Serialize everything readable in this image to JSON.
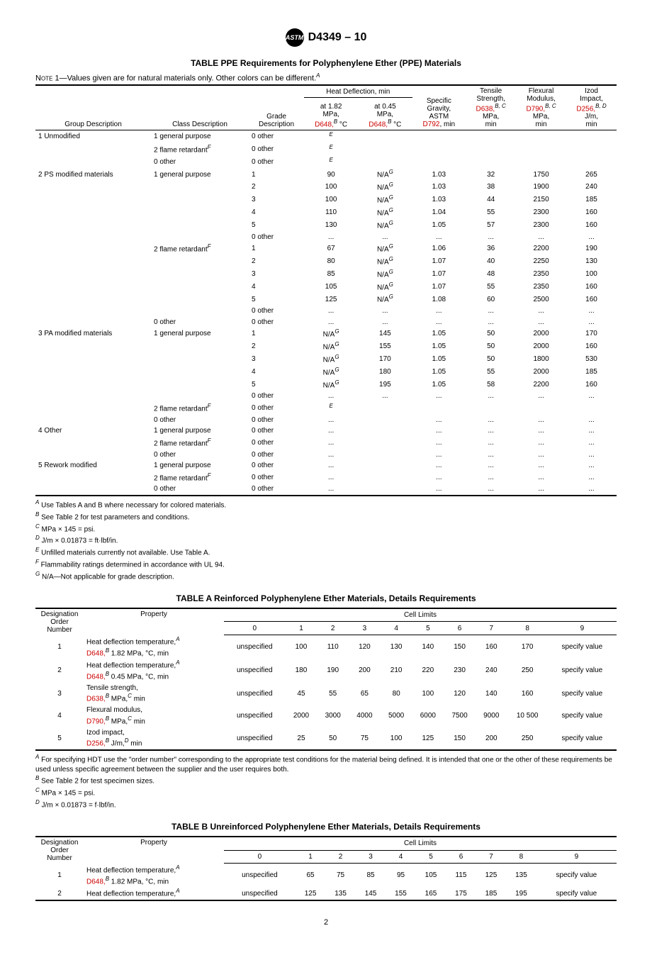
{
  "header": {
    "logo_text": "ASTM",
    "doc_id": "D4349 – 10"
  },
  "table_ppe": {
    "title": "TABLE PPE  Requirements for Polyphenylene Ether (PPE) Materials",
    "note_label": "Note 1",
    "note_text": "—Values given are for natural materials only. Other colors can be different.",
    "note_sup": "A",
    "headers": {
      "group": "Group Description",
      "class": "Class Description",
      "grade": "Grade Description",
      "hd_span": "Heat Deflection, min",
      "hd1_l1": "at 1.82",
      "hd1_l2": "MPa,",
      "hd1_l3": "D648,",
      "hd1_sup": "B",
      "hd1_unit": " °C",
      "hd2_l1": "at 0.45",
      "hd2_l2": "MPa,",
      "hd2_l3": "D648,",
      "hd2_sup": "B",
      "hd2_unit": " °C",
      "sg_l1": "Specific",
      "sg_l2": "Gravity,",
      "sg_l3": "ASTM",
      "sg_l4": "D792",
      "sg_l5": ", min",
      "ts_l1": "Tensile",
      "ts_l2": "Strength,",
      "ts_l3": "D638,",
      "ts_sup": "B, C",
      "ts_l4": "MPa,",
      "ts_l5": "min",
      "fm_l1": "Flexural",
      "fm_l2": "Modulus,",
      "fm_l3": "D790,",
      "fm_sup": "B, C",
      "fm_l4": "MPa,",
      "fm_l5": "min",
      "iz_l1": "Izod",
      "iz_l2": "Impact,",
      "iz_l3": "D256,",
      "iz_sup": "B, D",
      "iz_l4": "J/m,",
      "iz_l5": "min"
    },
    "rows": [
      {
        "g": "1 Unmodified",
        "c": "1 general purpose",
        "gr": "0 other",
        "v": [
          "E",
          "",
          "",
          "",
          "",
          ""
        ]
      },
      {
        "g": "",
        "c": "2 flame retardant",
        "cF": "F",
        "gr": "0 other",
        "v": [
          "E",
          "",
          "",
          "",
          "",
          ""
        ]
      },
      {
        "g": "",
        "c": "0 other",
        "gr": "0 other",
        "v": [
          "E",
          "",
          "",
          "",
          "",
          ""
        ]
      },
      {
        "g": "2 PS modified materials",
        "c": "1 general purpose",
        "gr": "1",
        "v": [
          "90",
          "N/A G",
          "1.03",
          "32",
          "1750",
          "265"
        ]
      },
      {
        "g": "",
        "c": "",
        "gr": "2",
        "v": [
          "100",
          "N/A G",
          "1.03",
          "38",
          "1900",
          "240"
        ]
      },
      {
        "g": "",
        "c": "",
        "gr": "3",
        "v": [
          "100",
          "N/A G",
          "1.03",
          "44",
          "2150",
          "185"
        ]
      },
      {
        "g": "",
        "c": "",
        "gr": "4",
        "v": [
          "110",
          "N/A G",
          "1.04",
          "55",
          "2300",
          "160"
        ]
      },
      {
        "g": "",
        "c": "",
        "gr": "5",
        "v": [
          "130",
          "N/A G",
          "1.05",
          "57",
          "2300",
          "160"
        ]
      },
      {
        "g": "",
        "c": "",
        "gr": "0 other",
        "v": [
          "...",
          "...",
          "...",
          "...",
          "...",
          "..."
        ]
      },
      {
        "g": "",
        "c": "2 flame retardant",
        "cF": "F",
        "gr": "1",
        "v": [
          "67",
          "N/A G",
          "1.06",
          "36",
          "2200",
          "190"
        ]
      },
      {
        "g": "",
        "c": "",
        "gr": "2",
        "v": [
          "80",
          "N/A G",
          "1.07",
          "40",
          "2250",
          "130"
        ]
      },
      {
        "g": "",
        "c": "",
        "gr": "3",
        "v": [
          "85",
          "N/A G",
          "1.07",
          "48",
          "2350",
          "100"
        ]
      },
      {
        "g": "",
        "c": "",
        "gr": "4",
        "v": [
          "105",
          "N/A G",
          "1.07",
          "55",
          "2350",
          "160"
        ]
      },
      {
        "g": "",
        "c": "",
        "gr": "5",
        "v": [
          "125",
          "N/A G",
          "1.08",
          "60",
          "2500",
          "160"
        ]
      },
      {
        "g": "",
        "c": "",
        "gr": "0 other",
        "v": [
          "...",
          "...",
          "...",
          "...",
          "...",
          "..."
        ]
      },
      {
        "g": "",
        "c": "0 other",
        "gr": "0 other",
        "v": [
          "...",
          "...",
          "...",
          "...",
          "...",
          "..."
        ]
      },
      {
        "g": "3 PA modified materials",
        "c": "1 general purpose",
        "gr": "1",
        "v": [
          "N/A G",
          "145",
          "1.05",
          "50",
          "2000",
          "170"
        ]
      },
      {
        "g": "",
        "c": "",
        "gr": "2",
        "v": [
          "N/A G",
          "155",
          "1.05",
          "50",
          "2000",
          "160"
        ]
      },
      {
        "g": "",
        "c": "",
        "gr": "3",
        "v": [
          "N/A G",
          "170",
          "1.05",
          "50",
          "1800",
          "530"
        ]
      },
      {
        "g": "",
        "c": "",
        "gr": "4",
        "v": [
          "N/A G",
          "180",
          "1.05",
          "55",
          "2000",
          "185"
        ]
      },
      {
        "g": "",
        "c": "",
        "gr": "5",
        "v": [
          "N/A G",
          "195",
          "1.05",
          "58",
          "2200",
          "160"
        ]
      },
      {
        "g": "",
        "c": "",
        "gr": "0 other",
        "v": [
          "...",
          "...",
          "...",
          "...",
          "...",
          "..."
        ]
      },
      {
        "g": "",
        "c": "2 flame retardant",
        "cF": "F",
        "gr": "0 other",
        "v": [
          "E",
          "",
          "",
          "",
          "",
          ""
        ]
      },
      {
        "g": "",
        "c": "0 other",
        "gr": "0 other",
        "v": [
          "...",
          "",
          "...",
          "...",
          "...",
          "..."
        ]
      },
      {
        "g": "4 Other",
        "c": "1 general purpose",
        "gr": "0 other",
        "v": [
          "...",
          "",
          "...",
          "...",
          "...",
          "..."
        ]
      },
      {
        "g": "",
        "c": "2 flame retardant",
        "cF": "F",
        "gr": "0 other",
        "v": [
          "...",
          "",
          "...",
          "...",
          "...",
          "..."
        ]
      },
      {
        "g": "",
        "c": "0 other",
        "gr": "0 other",
        "v": [
          "...",
          "",
          "...",
          "...",
          "...",
          "..."
        ]
      },
      {
        "g": "5 Rework modified",
        "c": "1 general purpose",
        "gr": "0 other",
        "v": [
          "...",
          "",
          "...",
          "...",
          "...",
          "..."
        ]
      },
      {
        "g": "",
        "c": "2 flame retardant",
        "cF": "F",
        "gr": "0 other",
        "v": [
          "...",
          "",
          "...",
          "...",
          "...",
          "..."
        ]
      },
      {
        "g": "",
        "c": "0 other",
        "gr": "0 other",
        "v": [
          "...",
          "",
          "...",
          "...",
          "...",
          "..."
        ]
      }
    ],
    "footnotes": [
      {
        "s": "A",
        "t": " Use Tables A and B where necessary for colored materials."
      },
      {
        "s": "B",
        "t": " See Table 2 for test parameters and conditions."
      },
      {
        "s": "C",
        "t": " MPa × 145 = psi."
      },
      {
        "s": "D",
        "t": " J/m × 0.01873 = ft·lbf/in."
      },
      {
        "s": "E",
        "t": " Unfilled materials currently not available. Use Table A."
      },
      {
        "s": "F",
        "t": " Flammability ratings determined in accordance with UL 94."
      },
      {
        "s": "G",
        "t": " N/A—Not applicable for grade description."
      }
    ]
  },
  "table_a": {
    "title": "TABLE A   Reinforced Polyphenylene Ether Materials, Details Requirements",
    "h_desig": "Designation Order Number",
    "h_prop": "Property",
    "h_cell": "Cell Limits",
    "cols": [
      "0",
      "1",
      "2",
      "3",
      "4",
      "5",
      "6",
      "7",
      "8",
      "9"
    ],
    "rows": [
      {
        "n": "1",
        "p1": "Heat deflection temperature,",
        "pA": "A",
        "p2": "D648,",
        "pB": "B",
        "p3": " 1.82 MPa, °C, min",
        "v": [
          "unspecified",
          "100",
          "110",
          "120",
          "130",
          "140",
          "150",
          "160",
          "170",
          "specify value"
        ]
      },
      {
        "n": "2",
        "p1": "Heat deflection temperature,",
        "pA": "A",
        "p2": "D648,",
        "pB": "B",
        "p3": " 0.45 MPa, °C, min",
        "v": [
          "unspecified",
          "180",
          "190",
          "200",
          "210",
          "220",
          "230",
          "240",
          "250",
          "specify value"
        ]
      },
      {
        "n": "3",
        "p1": "Tensile strength,",
        "pA": "",
        "p2": "D638,",
        "pB": "B",
        "p3": " MPa,",
        "pC": "C",
        "p4": " min",
        "v": [
          "unspecified",
          "45",
          "55",
          "65",
          "80",
          "100",
          "120",
          "140",
          "160",
          "specify value"
        ]
      },
      {
        "n": "4",
        "p1": "Flexural modulus,",
        "pA": "",
        "p2": "D790,",
        "pB": "B",
        "p3": " MPa,",
        "pC": "C",
        "p4": " min",
        "v": [
          "unspecified",
          "2000",
          "3000",
          "4000",
          "5000",
          "6000",
          "7500",
          "9000",
          "10 500",
          "specify value"
        ]
      },
      {
        "n": "5",
        "p1": "Izod impact, ",
        "pA": "",
        "p2": "D256,",
        "pB": "B",
        "p3": "",
        "pC": "",
        "p4": " J/m,",
        "pD": "D",
        "p5": " min",
        "v": [
          "unspecified",
          "25",
          "50",
          "75",
          "100",
          "125",
          "150",
          "200",
          "250",
          "specify value"
        ]
      }
    ],
    "footnotes": [
      {
        "s": "A",
        "t": " For specifying HDT use the \"order number\" corresponding to the appropriate test conditions for the material being defined. It is intended that one or the other of these requirements be used unless specific agreement between the supplier and the user requires both."
      },
      {
        "s": "B",
        "t": " See Table 2 for test specimen sizes."
      },
      {
        "s": "C",
        "t": " MPa × 145 = psi."
      },
      {
        "s": "D",
        "t": " J/m × 0.01873 = f·lbf/in."
      }
    ]
  },
  "table_b": {
    "title": "TABLE B  Unreinforced Polyphenylene Ether Materials, Details Requirements",
    "h_desig": "Designation Order Number",
    "h_prop": "Property",
    "h_cell": "Cell Limits",
    "cols": [
      "0",
      "1",
      "2",
      "3",
      "4",
      "5",
      "6",
      "7",
      "8",
      "9"
    ],
    "rows": [
      {
        "n": "1",
        "p1": "Heat deflection temperature,",
        "pA": "A",
        "p2": "D648,",
        "pB": "B",
        "p3": " 1.82 MPa, °C, min",
        "v": [
          "unspecified",
          "65",
          "75",
          "85",
          "95",
          "105",
          "115",
          "125",
          "135",
          "specify value"
        ]
      },
      {
        "n": "2",
        "p1": "Heat deflection temperature,",
        "pA": "A",
        "v": [
          "unspecified",
          "125",
          "135",
          "145",
          "155",
          "165",
          "175",
          "185",
          "195",
          "specify value"
        ]
      }
    ]
  },
  "page_number": "2"
}
